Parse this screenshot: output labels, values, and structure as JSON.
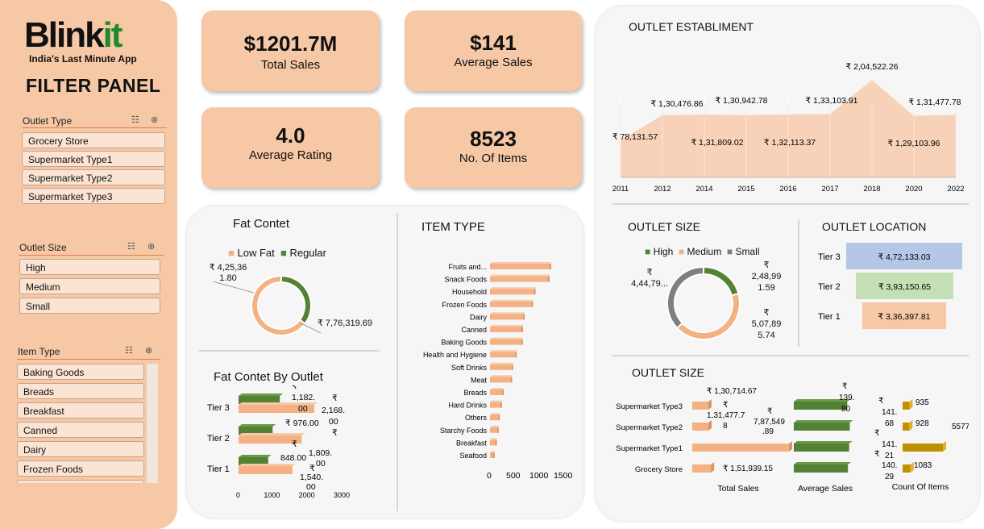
{
  "brand": {
    "name_main": "Blink",
    "name_accent": "it",
    "tagline": "India's Last Minute App",
    "panel_title": "FILTER PANEL"
  },
  "filters": {
    "outlet_type": {
      "label": "Outlet Type",
      "items": [
        "Grocery Store",
        "Supermarket Type1",
        "Supermarket Type2",
        "Supermarket Type3"
      ]
    },
    "outlet_size": {
      "label": "Outlet Size",
      "items": [
        "High",
        "Medium",
        "Small"
      ]
    },
    "item_type": {
      "label": "Item Type",
      "items": [
        "Baking Goods",
        "Breads",
        "Breakfast",
        "Canned",
        "Dairy",
        "Frozen Foods"
      ]
    }
  },
  "kpis": {
    "total_sales": {
      "value": "$1201.7M",
      "label": "Total Sales"
    },
    "average_sales": {
      "value": "$141",
      "label": "Average Sales"
    },
    "average_rating": {
      "value": "4.0",
      "label": "Average Rating"
    },
    "no_of_items": {
      "value": "8523",
      "label": "No. Of Items"
    }
  },
  "colors": {
    "peach": "#f6c8a6",
    "bar_peach": "#f4b183",
    "green": "#548235",
    "gray": "#7f7f7f",
    "blue": "#b4c7e7",
    "light_green": "#c5e0b4",
    "gold": "#bf9000"
  },
  "chart_data": [
    {
      "id": "fat_content",
      "type": "pie",
      "title": "Fat Contet",
      "labels": [
        "Low Fat",
        "Regular"
      ],
      "values": [
        776319.69,
        425361.8
      ],
      "value_labels": [
        "₹ 7,76,319.69",
        "₹ 4,25,36 1.80"
      ],
      "legend": "top"
    },
    {
      "id": "fat_by_outlet",
      "type": "bar",
      "title": "Fat Contet By Outlet",
      "categories": [
        "Tier 3",
        "Tier 2",
        "Tier 1"
      ],
      "series": [
        {
          "name": "Regular",
          "values": [
            1182.0,
            976.0,
            848.0
          ],
          "labels": [
            "₹ 1,182. 00",
            "₹ 976.00",
            "848.00"
          ]
        },
        {
          "name": "Low Fat",
          "values": [
            2168.0,
            1809.0,
            1540.0
          ],
          "labels": [
            "₹ 2,168. 00",
            "₹ 1,809. 00",
            "₹ 1,540. 00"
          ]
        }
      ],
      "x_ticks": [
        0,
        1000,
        2000,
        3000
      ],
      "xlim": [
        0,
        3000
      ]
    },
    {
      "id": "item_type",
      "type": "bar",
      "title": "ITEM TYPE",
      "categories": [
        "Fruits and...",
        "Snack Foods",
        "Household",
        "Frozen Foods",
        "Dairy",
        "Canned",
        "Baking Goods",
        "Health and Hygiene",
        "Soft Drinks",
        "Meat",
        "Breads",
        "Hard Drinks",
        "Others",
        "Starchy Foods",
        "Breakfast",
        "Seafood"
      ],
      "values": [
        1232,
        1200,
        910,
        856,
        682,
        649,
        648,
        520,
        445,
        425,
        251,
        214,
        169,
        148,
        110,
        64
      ],
      "x_ticks": [
        0,
        500,
        1000,
        1500
      ],
      "xlim": [
        0,
        1500
      ]
    },
    {
      "id": "outlet_establishment",
      "type": "area",
      "title": "OUTLET ESTABLIMENT",
      "x": [
        "2011",
        "2012",
        "2014",
        "2015",
        "2016",
        "2017",
        "2018",
        "2020",
        "2022"
      ],
      "values": [
        78131.57,
        130476.86,
        131809.02,
        130942.78,
        132113.37,
        133103.91,
        204522.26,
        129103.96,
        131477.78
      ],
      "labels": [
        "₹ 78,131.57",
        "₹ 1,30,476.86",
        "₹ 1,31,809.02",
        "₹ 1,30,942.78",
        "₹ 1,32,113.37",
        "₹ 1,33,103.91",
        "₹ 2,04,522.26",
        "₹ 1,29,103.96",
        "₹ 1,31,477.78"
      ]
    },
    {
      "id": "outlet_size",
      "type": "pie",
      "title": "OUTLET SIZE",
      "labels": [
        "High",
        "Medium",
        "Small"
      ],
      "values": [
        248991.59,
        507895.74,
        444794.17
      ],
      "value_labels": [
        "₹ 2,48,99 1.59",
        "₹ 5,07,89 5.74",
        "₹ 4,44,79..."
      ],
      "legend": "top"
    },
    {
      "id": "outlet_location",
      "type": "bar",
      "title": "OUTLET LOCATION",
      "categories": [
        "Tier 3",
        "Tier 2",
        "Tier 1"
      ],
      "values": [
        472133.03,
        393150.65,
        336397.81
      ],
      "labels": [
        "₹ 4,72,133.03",
        "₹ 3,93,150.65",
        "₹ 3,36,397.81"
      ]
    },
    {
      "id": "outlet_type_matrix",
      "type": "bar",
      "title": "OUTLET SIZE",
      "categories": [
        "Supermarket Type3",
        "Supermarket Type2",
        "Supermarket Type1",
        "Grocery Store"
      ],
      "series": [
        {
          "name": "Total Sales",
          "values": [
            130714.67,
            131477.78,
            787549.89,
            151939.15
          ],
          "labels": [
            "₹ 1,30,714.67",
            "₹ 1,31,477.7 8",
            "₹ 7,87,549 .89",
            "₹ 1,51,939.15"
          ]
        },
        {
          "name": "Average Sales",
          "values": [
            139.8,
            141.68,
            141.21,
            140.29
          ],
          "labels": [
            "₹ 139. 80",
            "₹ 141. 68",
            "₹ 141. 21",
            "₹ 140. 29"
          ]
        },
        {
          "name": "Count Of Items",
          "values": [
            935,
            928,
            5577,
            1083
          ],
          "labels": [
            "935",
            "928",
            "5577",
            "1083"
          ]
        }
      ]
    }
  ]
}
